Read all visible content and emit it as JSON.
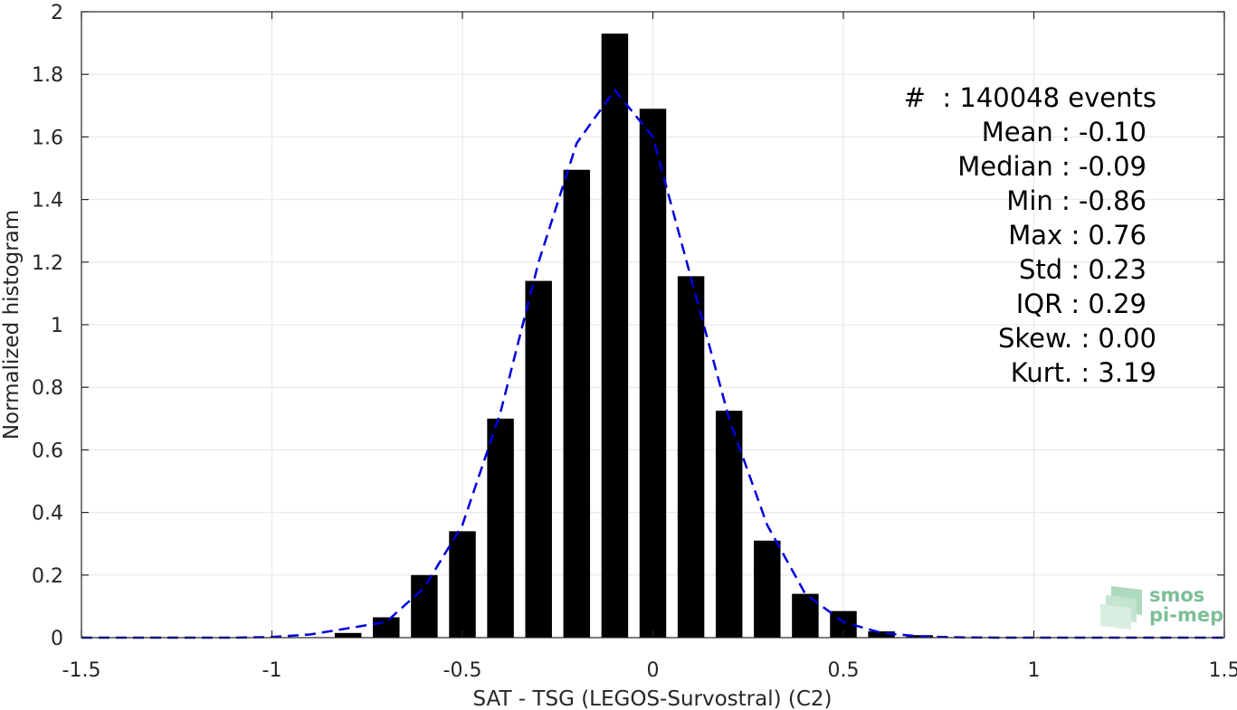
{
  "chart_data": {
    "type": "bar",
    "xlabel": "SAT - TSG (LEGOS-Survostral) (C2)",
    "ylabel": "Normalized histogram",
    "xlim": [
      -1.5,
      1.5
    ],
    "ylim": [
      0,
      2
    ],
    "xticks": [
      -1.5,
      -1,
      -0.5,
      0,
      0.5,
      1,
      1.5
    ],
    "xtick_labels": [
      "-1.5",
      "-1",
      "-0.5",
      "0",
      "0.5",
      "1",
      "1.5"
    ],
    "yticks": [
      0,
      0.2,
      0.4,
      0.6,
      0.8,
      1,
      1.2,
      1.4,
      1.6,
      1.8,
      2
    ],
    "ytick_labels": [
      "0",
      "0.2",
      "0.4",
      "0.6",
      "0.8",
      "1",
      "1.2",
      "1.4",
      "1.6",
      "1.8",
      "2"
    ],
    "grid": true,
    "bar_color": "#000000",
    "bar_width": 0.07,
    "bars": {
      "x": [
        -0.8,
        -0.7,
        -0.6,
        -0.5,
        -0.4,
        -0.3,
        -0.2,
        -0.1,
        0.0,
        0.1,
        0.2,
        0.3,
        0.4,
        0.5,
        0.6,
        0.7
      ],
      "y": [
        0.015,
        0.065,
        0.2,
        0.34,
        0.7,
        1.14,
        1.495,
        1.93,
        1.69,
        1.155,
        0.725,
        0.31,
        0.14,
        0.085,
        0.02,
        0.008
      ]
    },
    "fit_curve": {
      "style": "dashed",
      "color": "#0000dd",
      "x": [
        -1.5,
        -1.4,
        -1.3,
        -1.2,
        -1.1,
        -1.0,
        -0.9,
        -0.8,
        -0.7,
        -0.6,
        -0.5,
        -0.4,
        -0.3,
        -0.2,
        -0.1,
        0.0,
        0.1,
        0.2,
        0.3,
        0.4,
        0.5,
        0.6,
        0.7,
        0.8,
        0.9,
        1.0,
        1.1,
        1.2,
        1.3,
        1.4,
        1.5
      ],
      "y": [
        0,
        0,
        0,
        0,
        0,
        0.002,
        0.01,
        0.03,
        0.05,
        0.16,
        0.36,
        0.72,
        1.2,
        1.58,
        1.75,
        1.6,
        1.15,
        0.7,
        0.36,
        0.14,
        0.05,
        0.015,
        0.004,
        0.001,
        0,
        0,
        0,
        0,
        0,
        0,
        0
      ]
    },
    "stats": [
      {
        "label": "#  : 140048 events"
      },
      {
        "label": "Mean : -0.10"
      },
      {
        "label": "Median : -0.09"
      },
      {
        "label": "Min : -0.86"
      },
      {
        "label": "Max : 0.76"
      },
      {
        "label": "Std : 0.23"
      },
      {
        "label": "IQR : 0.29"
      },
      {
        "label": "Skew. : 0.00"
      },
      {
        "label": "Kurt. : 3.19"
      }
    ]
  },
  "logo": {
    "line1": "smos",
    "line2": "pi-mep"
  }
}
